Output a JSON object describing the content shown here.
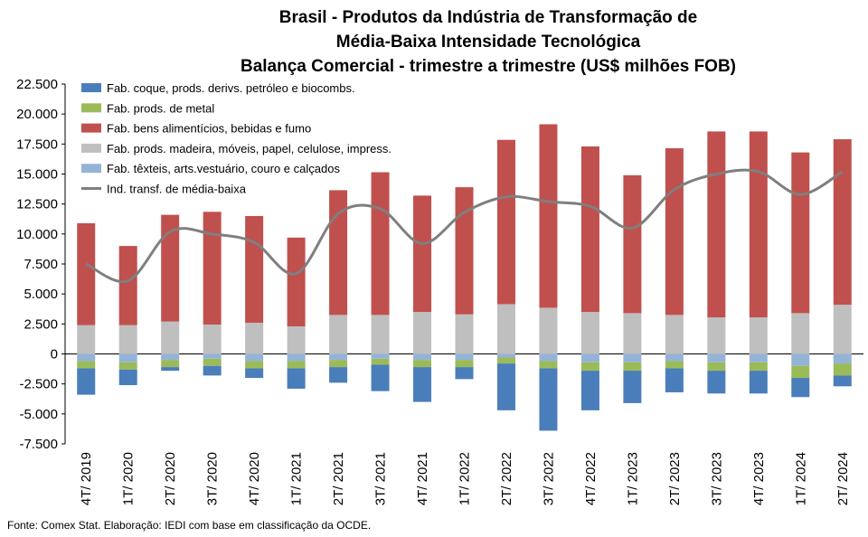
{
  "title_lines": [
    "Brasil - Produtos da Indústria de Transformação de",
    "Média-Baixa Intensidade Tecnológica",
    "Balança Comercial - trimestre a trimestre (US$ milhões FOB)"
  ],
  "source": "Fonte: Comex Stat. Elaboração: IEDI com base em classificação da OCDE.",
  "chart_data": {
    "type": "bar",
    "stacked": true,
    "title": "Brasil - Produtos da Indústria de Transformação de Média-Baixa Intensidade Tecnológica Balança Comercial - trimestre a trimestre (US$ milhões FOB)",
    "xlabel": "",
    "ylabel": "",
    "ylim": [
      -7500,
      22500
    ],
    "yticks": [
      22500,
      20000,
      17500,
      15000,
      12500,
      10000,
      7500,
      5000,
      2500,
      0,
      -2500,
      -5000,
      -7500
    ],
    "ytick_labels": [
      "22.500",
      "20.000",
      "17.500",
      "15.000",
      "12.500",
      "10.000",
      "7.500",
      "5.000",
      "2.500",
      "0",
      "-2.500",
      "-5.000",
      "-7.500"
    ],
    "grid": false,
    "legend_position": "top-left",
    "categories": [
      "4T/ 2019",
      "1T/ 2020",
      "2T/ 2020",
      "3T/ 2020",
      "4T/ 2020",
      "1T/ 2021",
      "2T/ 2021",
      "3T/ 2021",
      "4T/ 2021",
      "1T/ 2022",
      "2T/ 2022",
      "3T/ 2022",
      "4T/ 2022",
      "1T/ 2023",
      "2T/ 2023",
      "3T/ 2023",
      "4T/ 2023",
      "1T/ 2024",
      "2T/ 2024"
    ],
    "series": [
      {
        "name": "Fab. coque, prods. derivs. petróleo e biocombs.",
        "color": "#4a7ebb",
        "values": [
          -2200,
          -1300,
          -300,
          -800,
          -800,
          -1700,
          -1300,
          -2200,
          -2900,
          -1000,
          -3900,
          -5200,
          -3300,
          -2700,
          -2000,
          -1900,
          -1900,
          -1600,
          -900
        ]
      },
      {
        "name": "Fab. prods. de metal",
        "color": "#9bbb59",
        "values": [
          -600,
          -600,
          -600,
          -600,
          -600,
          -600,
          -600,
          -500,
          -600,
          -600,
          -500,
          -600,
          -700,
          -700,
          -600,
          -700,
          -700,
          -1000,
          -1000
        ]
      },
      {
        "name": "Fab. bens alimentícios, bebidas e fumo",
        "color": "#c0504d",
        "values": [
          8500,
          6600,
          8900,
          9400,
          8900,
          7400,
          10400,
          11900,
          9700,
          10600,
          13700,
          15300,
          13800,
          11500,
          13900,
          15500,
          15500,
          13400,
          13800
        ]
      },
      {
        "name": "Fab. prods. madeira, móveis, papel, celulose, impress.",
        "color": "#bfbfbf",
        "values": [
          2400,
          2400,
          2700,
          2450,
          2600,
          2300,
          3250,
          3250,
          3500,
          3300,
          4150,
          3850,
          3500,
          3400,
          3250,
          3050,
          3050,
          3400,
          4100
        ]
      },
      {
        "name": "Fab. têxteis, arts.vestuário, couro e calçados",
        "color": "#95b3d7",
        "values": [
          -600,
          -700,
          -500,
          -400,
          -600,
          -600,
          -500,
          -400,
          -500,
          -500,
          -300,
          -600,
          -700,
          -700,
          -600,
          -700,
          -700,
          -1000,
          -800
        ]
      }
    ],
    "line": {
      "name": "Ind. transf. de média-baixa",
      "color": "#7f7f7f",
      "values": [
        7500,
        6100,
        10200,
        10000,
        9300,
        6700,
        11700,
        12100,
        9200,
        11800,
        13100,
        12700,
        12300,
        10500,
        13700,
        15000,
        15200,
        13300,
        15200
      ]
    }
  }
}
